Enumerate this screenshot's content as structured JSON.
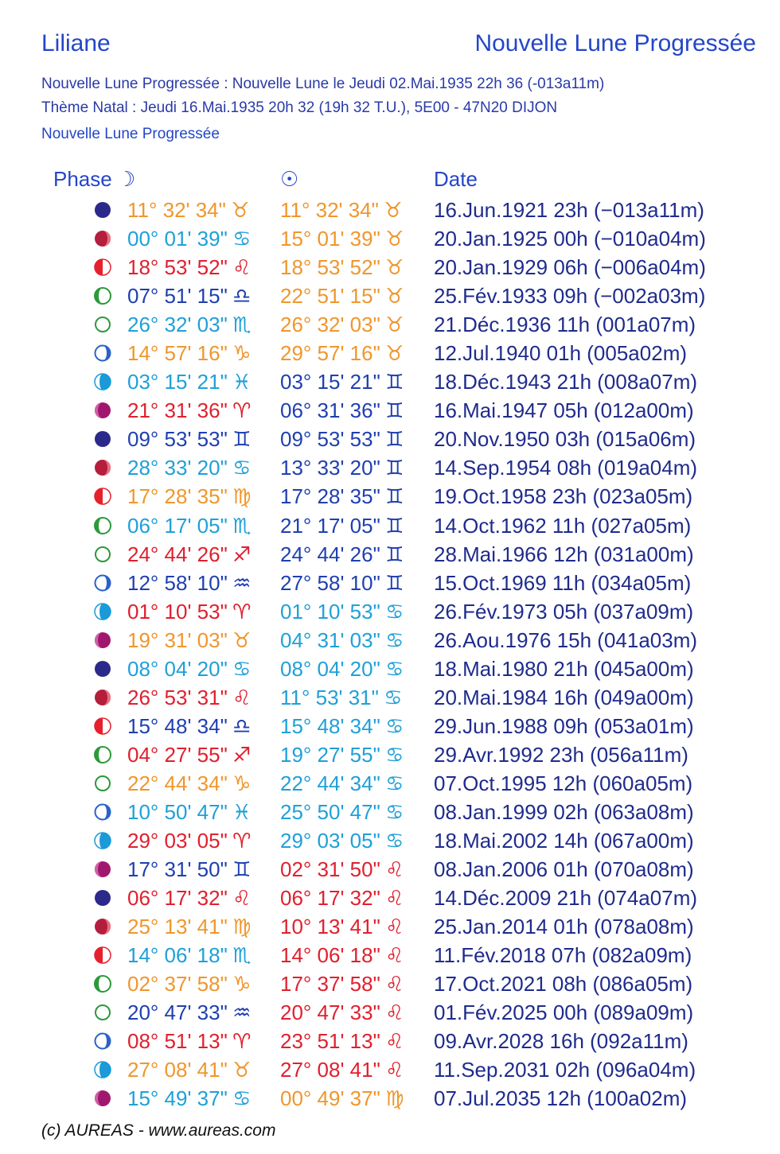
{
  "header": {
    "name": "Liliane",
    "title": "Nouvelle Lune Progressée"
  },
  "info": {
    "line1": "Nouvelle Lune Progressée : Nouvelle Lune le Jeudi 02.Mai.1935 22h 36  (-013a11m)",
    "line2": "Thème Natal : Jeudi 16.Mai.1935 20h 32 (19h 32 T.U.), 5E00 - 47N20  DIJON",
    "line3": "Nouvelle Lune Progressée"
  },
  "table_headers": {
    "phase": "Phase",
    "moon": "☽",
    "sun": "☉",
    "date": "Date"
  },
  "colors": {
    "blue": "#1f3fb0",
    "cyan": "#1fa0d8",
    "red": "#e0202e",
    "orange": "#f0962c",
    "navy": "#1f2b8c"
  },
  "rows": [
    {
      "phase": "new",
      "moon": "11° 32' 34\"",
      "moon_sign": "♉",
      "moon_color": "orange",
      "sun": "11° 32' 34\"",
      "sun_sign": "♉",
      "sun_color": "orange",
      "date": "16.Jun.1921 23h (−013a11m)"
    },
    {
      "phase": "crescent",
      "moon": "00° 01' 39\"",
      "moon_sign": "♋",
      "moon_color": "cyan",
      "sun": "15° 01' 39\"",
      "sun_sign": "♉",
      "sun_color": "orange",
      "date": "20.Jan.1925 00h (−010a04m)"
    },
    {
      "phase": "first-quarter",
      "moon": "18° 53' 52\"",
      "moon_sign": "♌",
      "moon_color": "red",
      "sun": "18° 53' 52\"",
      "sun_sign": "♉",
      "sun_color": "orange",
      "date": "20.Jan.1929 06h (−006a04m)"
    },
    {
      "phase": "gibbous",
      "moon": "07° 51' 15\"",
      "moon_sign": "♎",
      "moon_color": "blue",
      "sun": "22° 51' 15\"",
      "sun_sign": "♉",
      "sun_color": "orange",
      "date": "25.Fév.1933 09h (−002a03m)"
    },
    {
      "phase": "full",
      "moon": "26° 32' 03\"",
      "moon_sign": "♏",
      "moon_color": "cyan",
      "sun": "26° 32' 03\"",
      "sun_sign": "♉",
      "sun_color": "orange",
      "date": "21.Déc.1936 11h (001a07m)"
    },
    {
      "phase": "disseminating",
      "moon": "14° 57' 16\"",
      "moon_sign": "♑",
      "moon_color": "orange",
      "sun": "29° 57' 16\"",
      "sun_sign": "♉",
      "sun_color": "orange",
      "date": "12.Jul.1940 01h (005a02m)"
    },
    {
      "phase": "last-quarter",
      "moon": "03° 15' 21\"",
      "moon_sign": "♓",
      "moon_color": "cyan",
      "sun": "03° 15' 21\"",
      "sun_sign": "♊",
      "sun_color": "blue",
      "date": "18.Déc.1943 21h (008a07m)"
    },
    {
      "phase": "balsamic",
      "moon": "21° 31' 36\"",
      "moon_sign": "♈",
      "moon_color": "red",
      "sun": "06° 31' 36\"",
      "sun_sign": "♊",
      "sun_color": "blue",
      "date": "16.Mai.1947 05h (012a00m)"
    },
    {
      "phase": "new",
      "moon": "09° 53' 53\"",
      "moon_sign": "♊",
      "moon_color": "blue",
      "sun": "09° 53' 53\"",
      "sun_sign": "♊",
      "sun_color": "blue",
      "date": "20.Nov.1950 03h (015a06m)"
    },
    {
      "phase": "crescent",
      "moon": "28° 33' 20\"",
      "moon_sign": "♋",
      "moon_color": "cyan",
      "sun": "13° 33' 20\"",
      "sun_sign": "♊",
      "sun_color": "blue",
      "date": "14.Sep.1954 08h (019a04m)"
    },
    {
      "phase": "first-quarter",
      "moon": "17° 28' 35\"",
      "moon_sign": "♍",
      "moon_color": "orange",
      "sun": "17° 28' 35\"",
      "sun_sign": "♊",
      "sun_color": "blue",
      "date": "19.Oct.1958 23h (023a05m)"
    },
    {
      "phase": "gibbous",
      "moon": "06° 17' 05\"",
      "moon_sign": "♏",
      "moon_color": "cyan",
      "sun": "21° 17' 05\"",
      "sun_sign": "♊",
      "sun_color": "blue",
      "date": "14.Oct.1962 11h (027a05m)"
    },
    {
      "phase": "full",
      "moon": "24° 44' 26\"",
      "moon_sign": "♐",
      "moon_color": "red",
      "sun": "24° 44' 26\"",
      "sun_sign": "♊",
      "sun_color": "blue",
      "date": "28.Mai.1966 12h (031a00m)"
    },
    {
      "phase": "disseminating",
      "moon": "12° 58' 10\"",
      "moon_sign": "♒",
      "moon_color": "blue",
      "sun": "27° 58' 10\"",
      "sun_sign": "♊",
      "sun_color": "blue",
      "date": "15.Oct.1969 11h (034a05m)"
    },
    {
      "phase": "last-quarter",
      "moon": "01° 10' 53\"",
      "moon_sign": "♈",
      "moon_color": "red",
      "sun": "01° 10' 53\"",
      "sun_sign": "♋",
      "sun_color": "cyan",
      "date": "26.Fév.1973 05h (037a09m)"
    },
    {
      "phase": "balsamic",
      "moon": "19° 31' 03\"",
      "moon_sign": "♉",
      "moon_color": "orange",
      "sun": "04° 31' 03\"",
      "sun_sign": "♋",
      "sun_color": "cyan",
      "date": "26.Aou.1976 15h (041a03m)"
    },
    {
      "phase": "new",
      "moon": "08° 04' 20\"",
      "moon_sign": "♋",
      "moon_color": "cyan",
      "sun": "08° 04' 20\"",
      "sun_sign": "♋",
      "sun_color": "cyan",
      "date": "18.Mai.1980 21h (045a00m)"
    },
    {
      "phase": "crescent",
      "moon": "26° 53' 31\"",
      "moon_sign": "♌",
      "moon_color": "red",
      "sun": "11° 53' 31\"",
      "sun_sign": "♋",
      "sun_color": "cyan",
      "date": "20.Mai.1984 16h (049a00m)"
    },
    {
      "phase": "first-quarter",
      "moon": "15° 48' 34\"",
      "moon_sign": "♎",
      "moon_color": "blue",
      "sun": "15° 48' 34\"",
      "sun_sign": "♋",
      "sun_color": "cyan",
      "date": "29.Jun.1988 09h (053a01m)"
    },
    {
      "phase": "gibbous",
      "moon": "04° 27' 55\"",
      "moon_sign": "♐",
      "moon_color": "red",
      "sun": "19° 27' 55\"",
      "sun_sign": "♋",
      "sun_color": "cyan",
      "date": "29.Avr.1992 23h (056a11m)"
    },
    {
      "phase": "full",
      "moon": "22° 44' 34\"",
      "moon_sign": "♑",
      "moon_color": "orange",
      "sun": "22° 44' 34\"",
      "sun_sign": "♋",
      "sun_color": "cyan",
      "date": "07.Oct.1995 12h (060a05m)"
    },
    {
      "phase": "disseminating",
      "moon": "10° 50' 47\"",
      "moon_sign": "♓",
      "moon_color": "cyan",
      "sun": "25° 50' 47\"",
      "sun_sign": "♋",
      "sun_color": "cyan",
      "date": "08.Jan.1999 02h (063a08m)"
    },
    {
      "phase": "last-quarter",
      "moon": "29° 03' 05\"",
      "moon_sign": "♈",
      "moon_color": "red",
      "sun": "29° 03' 05\"",
      "sun_sign": "♋",
      "sun_color": "cyan",
      "date": "18.Mai.2002 14h (067a00m)"
    },
    {
      "phase": "balsamic",
      "moon": "17° 31' 50\"",
      "moon_sign": "♊",
      "moon_color": "blue",
      "sun": "02° 31' 50\"",
      "sun_sign": "♌",
      "sun_color": "red",
      "date": "08.Jan.2006 01h (070a08m)"
    },
    {
      "phase": "new",
      "moon": "06° 17' 32\"",
      "moon_sign": "♌",
      "moon_color": "red",
      "sun": "06° 17' 32\"",
      "sun_sign": "♌",
      "sun_color": "red",
      "date": "14.Déc.2009 21h (074a07m)"
    },
    {
      "phase": "crescent",
      "moon": "25° 13' 41\"",
      "moon_sign": "♍",
      "moon_color": "orange",
      "sun": "10° 13' 41\"",
      "sun_sign": "♌",
      "sun_color": "red",
      "date": "25.Jan.2014 01h (078a08m)"
    },
    {
      "phase": "first-quarter",
      "moon": "14° 06' 18\"",
      "moon_sign": "♏",
      "moon_color": "cyan",
      "sun": "14° 06' 18\"",
      "sun_sign": "♌",
      "sun_color": "red",
      "date": "11.Fév.2018 07h (082a09m)"
    },
    {
      "phase": "gibbous",
      "moon": "02° 37' 58\"",
      "moon_sign": "♑",
      "moon_color": "orange",
      "sun": "17° 37' 58\"",
      "sun_sign": "♌",
      "sun_color": "red",
      "date": "17.Oct.2021 08h (086a05m)"
    },
    {
      "phase": "full",
      "moon": "20° 47' 33\"",
      "moon_sign": "♒",
      "moon_color": "blue",
      "sun": "20° 47' 33\"",
      "sun_sign": "♌",
      "sun_color": "red",
      "date": "01.Fév.2025 00h (089a09m)"
    },
    {
      "phase": "disseminating",
      "moon": "08° 51' 13\"",
      "moon_sign": "♈",
      "moon_color": "red",
      "sun": "23° 51' 13\"",
      "sun_sign": "♌",
      "sun_color": "red",
      "date": "09.Avr.2028 16h (092a11m)"
    },
    {
      "phase": "last-quarter",
      "moon": "27° 08' 41\"",
      "moon_sign": "♉",
      "moon_color": "orange",
      "sun": "27° 08' 41\"",
      "sun_sign": "♌",
      "sun_color": "red",
      "date": "11.Sep.2031 02h (096a04m)"
    },
    {
      "phase": "balsamic",
      "moon": "15° 49' 37\"",
      "moon_sign": "♋",
      "moon_color": "cyan",
      "sun": "00° 49' 37\"",
      "sun_sign": "♍",
      "sun_color": "orange",
      "date": "07.Jul.2035 12h (100a02m)"
    }
  ],
  "footer": "(c) AUREAS - www.aureas.com"
}
